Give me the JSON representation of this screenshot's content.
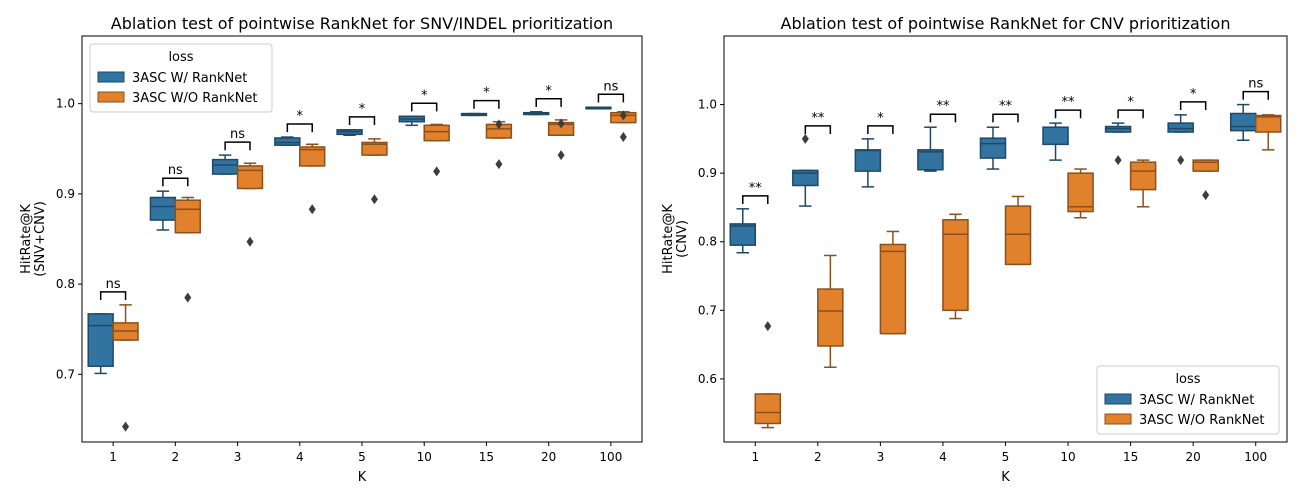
{
  "chart_data": [
    {
      "type": "box",
      "title": "Ablation test of pointwise RankNet for SNV/INDEL prioritization",
      "xlabel": "K",
      "ylabel_lines": [
        "HitRate@K",
        "(SNV+CNV)"
      ],
      "categories": [
        "1",
        "2",
        "3",
        "4",
        "5",
        "10",
        "15",
        "20",
        "100"
      ],
      "ylim": [
        0.625,
        1.075
      ],
      "yticks": [
        0.7,
        0.8,
        0.9,
        1.0
      ],
      "ytick_labels": [
        "0.7",
        "0.8",
        "0.9",
        "1.0"
      ],
      "legend": {
        "title": "loss",
        "position": "top-left"
      },
      "series": [
        {
          "name": "3ASC W/ RankNet",
          "color": "#3274a1",
          "boxes": [
            {
              "wlo": 0.701,
              "q1": 0.709,
              "med": 0.754,
              "q3": 0.767,
              "whi": 0.767,
              "out": []
            },
            {
              "wlo": 0.86,
              "q1": 0.871,
              "med": 0.886,
              "q3": 0.896,
              "whi": 0.903,
              "out": []
            },
            {
              "wlo": 0.922,
              "q1": 0.922,
              "med": 0.932,
              "q3": 0.938,
              "whi": 0.943,
              "out": []
            },
            {
              "wlo": 0.954,
              "q1": 0.954,
              "med": 0.957,
              "q3": 0.962,
              "whi": 0.963,
              "out": []
            },
            {
              "wlo": 0.965,
              "q1": 0.966,
              "med": 0.969,
              "q3": 0.971,
              "whi": 0.971,
              "out": []
            },
            {
              "wlo": 0.976,
              "q1": 0.98,
              "med": 0.983,
              "q3": 0.986,
              "whi": 0.986,
              "out": []
            },
            {
              "wlo": 0.987,
              "q1": 0.987,
              "med": 0.988,
              "q3": 0.989,
              "whi": 0.989,
              "out": []
            },
            {
              "wlo": 0.988,
              "q1": 0.988,
              "med": 0.989,
              "q3": 0.99,
              "whi": 0.991,
              "out": []
            },
            {
              "wlo": 0.996,
              "q1": 0.996,
              "med": 0.996,
              "q3": 0.996,
              "whi": 0.996,
              "out": []
            }
          ]
        },
        {
          "name": "3ASC W/O RankNet",
          "color": "#e1812c",
          "boxes": [
            {
              "wlo": 0.738,
              "q1": 0.738,
              "med": 0.748,
              "q3": 0.757,
              "whi": 0.777,
              "out": [
                0.642
              ]
            },
            {
              "wlo": 0.857,
              "q1": 0.857,
              "med": 0.883,
              "q3": 0.893,
              "whi": 0.896,
              "out": [
                0.785
              ]
            },
            {
              "wlo": 0.906,
              "q1": 0.906,
              "med": 0.926,
              "q3": 0.931,
              "whi": 0.934,
              "out": [
                0.847
              ]
            },
            {
              "wlo": 0.931,
              "q1": 0.931,
              "med": 0.949,
              "q3": 0.952,
              "whi": 0.955,
              "out": [
                0.883
              ]
            },
            {
              "wlo": 0.943,
              "q1": 0.943,
              "med": 0.955,
              "q3": 0.957,
              "whi": 0.961,
              "out": [
                0.894
              ]
            },
            {
              "wlo": 0.959,
              "q1": 0.959,
              "med": 0.969,
              "q3": 0.976,
              "whi": 0.977,
              "out": [
                0.925
              ]
            },
            {
              "wlo": 0.962,
              "q1": 0.962,
              "med": 0.972,
              "q3": 0.977,
              "whi": 0.98,
              "out": [
                0.977,
                0.933
              ]
            },
            {
              "wlo": 0.965,
              "q1": 0.965,
              "med": 0.977,
              "q3": 0.979,
              "whi": 0.982,
              "out": [
                0.978,
                0.943
              ]
            },
            {
              "wlo": 0.979,
              "q1": 0.979,
              "med": 0.987,
              "q3": 0.99,
              "whi": 0.991,
              "out": [
                0.987,
                0.963
              ]
            }
          ]
        }
      ],
      "significance": [
        "ns",
        "ns",
        "ns",
        "*",
        "*",
        "*",
        "*",
        "*",
        "ns"
      ]
    },
    {
      "type": "box",
      "title": "Ablation test of pointwise RankNet for CNV prioritization",
      "xlabel": "K",
      "ylabel_lines": [
        "HitRate@K",
        "(CNV)"
      ],
      "categories": [
        "1",
        "2",
        "3",
        "4",
        "5",
        "10",
        "15",
        "20",
        "100"
      ],
      "ylim": [
        0.508,
        1.1
      ],
      "yticks": [
        0.6,
        0.7,
        0.8,
        0.9,
        1.0
      ],
      "ytick_labels": [
        "0.6",
        "0.7",
        "0.8",
        "0.9",
        "1.0"
      ],
      "legend": {
        "title": "loss",
        "position": "bottom-right"
      },
      "series": [
        {
          "name": "3ASC W/ RankNet",
          "color": "#3274a1",
          "boxes": [
            {
              "wlo": 0.784,
              "q1": 0.795,
              "med": 0.823,
              "q3": 0.826,
              "whi": 0.848,
              "out": []
            },
            {
              "wlo": 0.852,
              "q1": 0.882,
              "med": 0.9,
              "q3": 0.904,
              "whi": 0.904,
              "out": [
                0.95
              ]
            },
            {
              "wlo": 0.88,
              "q1": 0.903,
              "med": 0.933,
              "q3": 0.934,
              "whi": 0.95,
              "out": []
            },
            {
              "wlo": 0.903,
              "q1": 0.905,
              "med": 0.931,
              "q3": 0.934,
              "whi": 0.967,
              "out": []
            },
            {
              "wlo": 0.906,
              "q1": 0.922,
              "med": 0.943,
              "q3": 0.951,
              "whi": 0.967,
              "out": []
            },
            {
              "wlo": 0.919,
              "q1": 0.942,
              "med": 0.967,
              "q3": 0.967,
              "whi": 0.973,
              "out": []
            },
            {
              "wlo": 0.96,
              "q1": 0.96,
              "med": 0.965,
              "q3": 0.968,
              "whi": 0.973,
              "out": [
                0.919
              ]
            },
            {
              "wlo": 0.96,
              "q1": 0.96,
              "med": 0.965,
              "q3": 0.973,
              "whi": 0.985,
              "out": [
                0.919
              ]
            },
            {
              "wlo": 0.948,
              "q1": 0.962,
              "med": 0.968,
              "q3": 0.987,
              "whi": 1.0,
              "out": []
            }
          ]
        },
        {
          "name": "3ASC W/O RankNet",
          "color": "#e1812c",
          "boxes": [
            {
              "wlo": 0.529,
              "q1": 0.535,
              "med": 0.551,
              "q3": 0.578,
              "whi": 0.578,
              "out": [
                0.677
              ]
            },
            {
              "wlo": 0.617,
              "q1": 0.648,
              "med": 0.699,
              "q3": 0.731,
              "whi": 0.78,
              "out": []
            },
            {
              "wlo": 0.666,
              "q1": 0.666,
              "med": 0.786,
              "q3": 0.796,
              "whi": 0.815,
              "out": []
            },
            {
              "wlo": 0.688,
              "q1": 0.7,
              "med": 0.811,
              "q3": 0.832,
              "whi": 0.84,
              "out": []
            },
            {
              "wlo": 0.767,
              "q1": 0.767,
              "med": 0.811,
              "q3": 0.852,
              "whi": 0.866,
              "out": []
            },
            {
              "wlo": 0.835,
              "q1": 0.844,
              "med": 0.851,
              "q3": 0.9,
              "whi": 0.906,
              "out": []
            },
            {
              "wlo": 0.851,
              "q1": 0.876,
              "med": 0.903,
              "q3": 0.916,
              "whi": 0.919,
              "out": []
            },
            {
              "wlo": 0.903,
              "q1": 0.903,
              "med": 0.916,
              "q3": 0.919,
              "whi": 0.919,
              "out": [
                0.868
              ]
            },
            {
              "wlo": 0.934,
              "q1": 0.96,
              "med": 0.982,
              "q3": 0.984,
              "whi": 0.985,
              "out": []
            }
          ]
        }
      ],
      "significance": [
        "**",
        "**",
        "*",
        "**",
        "**",
        "**",
        "*",
        "*",
        "ns"
      ]
    }
  ]
}
